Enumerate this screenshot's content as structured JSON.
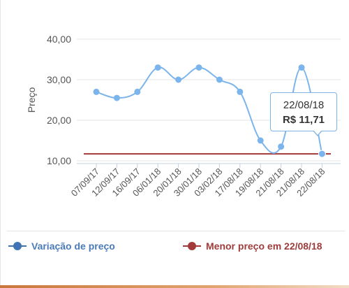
{
  "colors": {
    "series_line": "#7cb5ec",
    "series_legend": "#3f73b4",
    "min_line": "#a33a3a",
    "grid": "#e6e6e6",
    "axis_text": "#555555"
  },
  "tooltip": {
    "date": "22/08/18",
    "price": "R$ 11,71"
  },
  "legend": {
    "variacao_label": "Variação de preço",
    "menor_label": "Menor preço em 22/08/18"
  },
  "chart_data": {
    "type": "line",
    "ylabel": "Preço",
    "xlabel": "",
    "ylim": [
      10,
      40
    ],
    "yticks": [
      10,
      20,
      30,
      40
    ],
    "ytick_labels": [
      "10,00",
      "20,00",
      "30,00",
      "40,00"
    ],
    "grid": true,
    "legend_position": "bottom",
    "categories": [
      "07/09/17",
      "12/09/17",
      "16/09/17",
      "06/01/18",
      "20/01/18",
      "30/01/18",
      "03/02/18",
      "17/08/18",
      "19/08/18",
      "21/08/18",
      "21/08/18",
      "22/08/18"
    ],
    "series": [
      {
        "name": "Variação de preço",
        "values": [
          27,
          25.5,
          27,
          33,
          30,
          33,
          30,
          27,
          15,
          13.5,
          33,
          11.71
        ]
      },
      {
        "name": "Menor preço em 22/08/18",
        "values": [
          11.71,
          11.71,
          11.71,
          11.71,
          11.71,
          11.71,
          11.71,
          11.71,
          11.71,
          11.71,
          11.71,
          11.71
        ]
      }
    ],
    "highlight": {
      "index": 11,
      "date": "22/08/18",
      "value": "R$ 11,71"
    }
  }
}
